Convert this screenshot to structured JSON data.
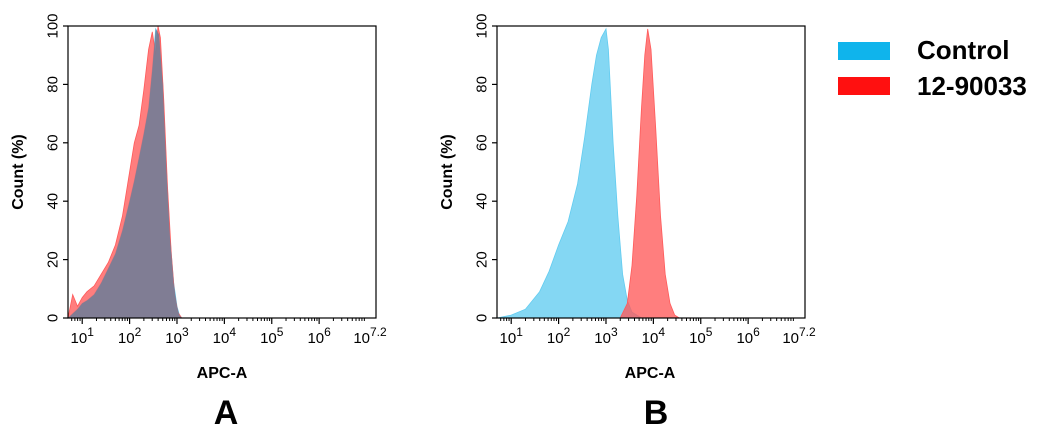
{
  "colors": {
    "control_fill": "#62CCF0",
    "control_fill_opacity": 0.78,
    "sample_fill": "#FF5A5A",
    "sample_fill_opacity": 0.78,
    "legend_control": "#0FB4EC",
    "legend_sample": "#FF1010",
    "overlap_tone": "#6E7F99",
    "axis": "#000000"
  },
  "legend": {
    "items": [
      {
        "label": "Control",
        "color": "#0FB4EC"
      },
      {
        "label": "12-90033",
        "color": "#FF1010"
      }
    ]
  },
  "chart_data": [
    {
      "type": "area",
      "panel_label": "A",
      "xlabel": "APC-A",
      "ylabel": "Count  (%)",
      "xscale": "log",
      "xlim": [
        0.7,
        7.2
      ],
      "ylim": [
        0,
        100
      ],
      "xtick_labels": [
        "10",
        "10",
        "10",
        "10",
        "10",
        "10"
      ],
      "xtick_exponents": [
        "1",
        "2",
        "3",
        "4",
        "5",
        "6"
      ],
      "xtick_last": {
        "base": "10",
        "exponent": "7.2"
      },
      "ytick_labels": [
        "0",
        "20",
        "40",
        "60",
        "80",
        "100"
      ],
      "series": [
        {
          "name": "Control",
          "x": [
            0.7,
            0.9,
            1.0,
            1.1,
            1.25,
            1.4,
            1.55,
            1.7,
            1.85,
            2.0,
            2.1,
            2.2,
            2.3,
            2.4,
            2.48,
            2.55,
            2.62,
            2.7,
            2.78,
            2.85,
            2.93,
            3.0,
            3.05,
            3.1
          ],
          "y": [
            0,
            3,
            5,
            6,
            8,
            12,
            17,
            22,
            30,
            40,
            47,
            55,
            63,
            72,
            85,
            99,
            97,
            80,
            50,
            28,
            12,
            4,
            1,
            0
          ]
        },
        {
          "name": "12-90033",
          "x": [
            0.7,
            0.8,
            0.9,
            1.0,
            1.1,
            1.25,
            1.4,
            1.55,
            1.7,
            1.85,
            2.0,
            2.1,
            2.2,
            2.3,
            2.4,
            2.48,
            2.55,
            2.6,
            2.65,
            2.72,
            2.8,
            2.88,
            2.95,
            3.02,
            3.1
          ],
          "y": [
            0,
            8,
            4,
            7,
            9,
            11,
            15,
            19,
            25,
            35,
            50,
            60,
            66,
            78,
            92,
            98,
            90,
            100,
            96,
            75,
            45,
            22,
            8,
            2,
            0
          ]
        }
      ]
    },
    {
      "type": "area",
      "panel_label": "B",
      "xlabel": "APC-A",
      "ylabel": "Count  (%)",
      "xscale": "log",
      "xlim": [
        0.7,
        7.2
      ],
      "ylim": [
        0,
        100
      ],
      "xtick_labels": [
        "10",
        "10",
        "10",
        "10",
        "10",
        "10"
      ],
      "xtick_exponents": [
        "1",
        "2",
        "3",
        "4",
        "5",
        "6"
      ],
      "xtick_last": {
        "base": "10",
        "exponent": "7.2"
      },
      "ytick_labels": [
        "0",
        "20",
        "40",
        "60",
        "80",
        "100"
      ],
      "series": [
        {
          "name": "Control",
          "x": [
            0.7,
            1.0,
            1.3,
            1.6,
            1.8,
            2.0,
            2.2,
            2.4,
            2.55,
            2.7,
            2.8,
            2.9,
            3.0,
            3.05,
            3.15,
            3.25,
            3.35,
            3.45,
            3.55,
            3.65,
            3.75,
            3.85
          ],
          "y": [
            0,
            1,
            3,
            9,
            16,
            25,
            33,
            46,
            62,
            80,
            90,
            96,
            99,
            92,
            60,
            35,
            15,
            6,
            2,
            1,
            0,
            0
          ]
        },
        {
          "name": "12-90033",
          "x": [
            3.3,
            3.45,
            3.55,
            3.65,
            3.75,
            3.82,
            3.88,
            3.95,
            4.05,
            4.15,
            4.25,
            4.35,
            4.45,
            4.55
          ],
          "y": [
            0,
            5,
            18,
            42,
            72,
            90,
            99,
            92,
            65,
            35,
            15,
            5,
            1,
            0
          ]
        }
      ]
    }
  ]
}
